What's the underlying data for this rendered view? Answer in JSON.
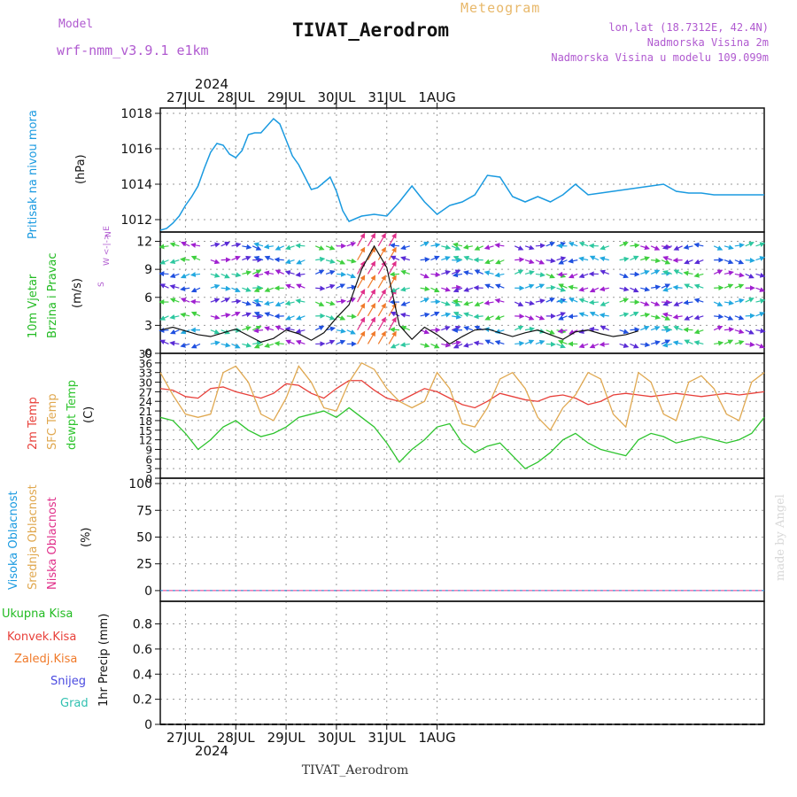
{
  "header": {
    "model_label": "Model",
    "model_name": "wrf-nmm_v3.9.1 e1km",
    "meteogram": "Meteogram",
    "station": "TIVAT_Aerodrom",
    "lonlat": "lon,lat (18.7312E, 42.4N)",
    "elev": "Nadmorska Visina 2m",
    "elev_model": "Nadmorska Visina u modelu 109.099m"
  },
  "time_axis": {
    "year": "2024",
    "days": [
      "27JUL",
      "28JUL",
      "29JUL",
      "30JUL",
      "31JUL",
      "1AUG"
    ],
    "bottom_station": "TIVAT_Aerodrom"
  },
  "panel_labels": {
    "pressure": [
      "Pritisak na nivou mora",
      "(hPa)"
    ],
    "wind": [
      "10m Vjetar",
      "Brzina i Pravac",
      "(m/s)"
    ],
    "wind_compass": [
      "N",
      "W <-|-> E",
      "S"
    ],
    "temp": [
      "2m Temp",
      "SFC Temp",
      "dewpt Temp",
      "(C)"
    ],
    "cloud": [
      "Visoka Oblacnost",
      "Srednja Oblacnost",
      "Niska Oblacnost",
      "(%)"
    ],
    "precip_axis": "1hr Precip (mm)",
    "precip_legend": [
      "Ukupna Kisa",
      "Konvek.Kisa",
      "Zaledj.Kisa",
      "Snijeg",
      "Grad"
    ],
    "credit": "made by Angel"
  },
  "colors": {
    "pressure": "#1a9ae0",
    "t2m": "#e8403a",
    "tsfc": "#e0a850",
    "dewpt": "#2ec42e",
    "magenta": "#e0308a",
    "purple": "#b05ad0",
    "green": "#22bb22",
    "orange": "#f07a2a",
    "blue": "#4a4ae0",
    "teal": "#30c0b0",
    "cyan": "#22a8e0"
  },
  "chart_data": [
    {
      "type": "line",
      "title": "",
      "ylabel": "Pritisak na nivou mora (hPa)",
      "ylim": [
        1011.3,
        1018.3
      ],
      "yticks": [
        1012,
        1014,
        1016,
        1018
      ],
      "x_hours": [
        0,
        3,
        6,
        9,
        12,
        15,
        18,
        21,
        24,
        27,
        30,
        33,
        36,
        39,
        42,
        45,
        48,
        51,
        54,
        57,
        60,
        63,
        66,
        69,
        72,
        75,
        78,
        81,
        84,
        87,
        90,
        96,
        102,
        108,
        114,
        120,
        126,
        132,
        138,
        144,
        150,
        156,
        162,
        168,
        174,
        180,
        186,
        192,
        198,
        204,
        210,
        216,
        222,
        228,
        234,
        240,
        246,
        252,
        258,
        264,
        270,
        276,
        282,
        288
      ],
      "series": [
        {
          "name": "Pritisak na nivou mora",
          "values": [
            1011.4,
            1011.5,
            1011.8,
            1012.2,
            1012.8,
            1013.3,
            1013.9,
            1014.9,
            1015.8,
            1016.3,
            1016.2,
            1015.7,
            1015.5,
            1015.9,
            1016.8,
            1016.9,
            1016.9,
            1017.3,
            1017.7,
            1017.4,
            1016.5,
            1015.6,
            1015.1,
            1014.4,
            1013.7,
            1013.8,
            1014.1,
            1014.4,
            1013.6,
            1012.5,
            1011.9,
            1012.2,
            1012.3,
            1012.2,
            1013.0,
            1013.9,
            1013.0,
            1012.3,
            1012.8,
            1013.0,
            1013.4,
            1014.5,
            1014.4,
            1013.3,
            1013.0,
            1013.3,
            1013.0,
            1013.4,
            1014.0,
            1013.4,
            1013.5,
            1013.6,
            1013.7,
            1013.8,
            1013.9,
            1014.0,
            1013.6,
            1013.5,
            1013.5,
            1013.4,
            1013.4,
            1013.4,
            1013.4,
            1013.4
          ]
        }
      ]
    },
    {
      "type": "line",
      "title": "",
      "ylabel": "10m Vjetar Brzina i Pravac (m/s)",
      "ylim": [
        0,
        13
      ],
      "yticks": [
        0,
        3,
        6,
        9,
        12
      ],
      "series": [
        {
          "name": "wind speed",
          "x_hours": [
            0,
            6,
            12,
            18,
            24,
            30,
            36,
            42,
            48,
            54,
            60,
            66,
            72,
            78,
            84,
            90,
            96,
            102,
            108,
            114,
            120,
            126,
            132,
            138,
            144,
            150,
            156,
            162,
            168,
            174,
            180,
            186,
            192,
            198,
            204,
            210,
            216,
            222,
            228
          ],
          "values": [
            2.5,
            2.8,
            2.4,
            2.0,
            1.8,
            2.2,
            2.6,
            1.9,
            1.2,
            1.6,
            2.5,
            2.1,
            1.4,
            2.2,
            3.8,
            5.2,
            9.0,
            11.5,
            9.2,
            3.0,
            1.5,
            2.8,
            2.0,
            1.0,
            1.8,
            2.5,
            2.6,
            2.2,
            1.8,
            2.2,
            2.5,
            2.0,
            1.5,
            2.3,
            2.5,
            2.1,
            1.8,
            2.0,
            2.4
          ]
        }
      ]
    },
    {
      "type": "line",
      "title": "",
      "ylabel": "(C)",
      "ylim": [
        0,
        39
      ],
      "yticks": [
        0,
        3,
        6,
        9,
        12,
        15,
        18,
        21,
        24,
        27,
        30,
        33,
        36,
        39
      ],
      "x_hours": [
        0,
        6,
        12,
        18,
        24,
        30,
        36,
        42,
        48,
        54,
        60,
        66,
        72,
        78,
        84,
        90,
        96,
        102,
        108,
        114,
        120,
        126,
        132,
        138,
        144,
        150,
        156,
        162,
        168,
        174,
        180,
        186,
        192,
        198,
        204,
        210,
        216,
        222,
        228,
        234,
        240,
        246,
        252,
        258,
        264,
        270,
        276,
        282,
        288
      ],
      "series": [
        {
          "name": "2m Temp",
          "values": [
            28,
            27.5,
            25.5,
            25,
            28,
            28.5,
            27,
            26,
            25,
            26.5,
            29.5,
            29,
            26.5,
            25,
            28,
            30.5,
            30.5,
            27.5,
            25,
            24,
            26,
            28,
            27,
            25,
            23,
            22,
            24,
            26.5,
            25.5,
            24.5,
            24,
            25.5,
            26,
            25,
            23,
            24,
            26,
            26.5,
            26,
            25.5,
            26,
            26.5,
            26,
            25.5,
            26,
            26.5,
            26,
            26.5,
            27
          ]
        },
        {
          "name": "SFC Temp",
          "values": [
            33,
            26,
            20,
            19,
            20,
            33,
            35,
            30,
            20,
            18,
            25,
            35,
            30,
            22,
            21,
            30,
            36,
            34,
            28,
            24,
            22,
            24,
            33,
            28,
            17,
            16,
            22,
            31,
            33,
            28,
            19,
            15,
            22,
            26,
            33,
            31,
            20,
            16,
            33,
            30,
            20,
            18,
            30,
            32,
            28,
            20,
            18,
            30,
            33
          ]
        },
        {
          "name": "dewpt Temp",
          "values": [
            19,
            18,
            14,
            9,
            12,
            16,
            18,
            15,
            13,
            14,
            16,
            19,
            20,
            21,
            19,
            22,
            19,
            16,
            11,
            5,
            9,
            12,
            16,
            17,
            11,
            8,
            10,
            11,
            7,
            3,
            5,
            8,
            12,
            14,
            11,
            9,
            8,
            7,
            12,
            14,
            13,
            11,
            12,
            13,
            12,
            11,
            12,
            14,
            19
          ]
        }
      ]
    },
    {
      "type": "line",
      "title": "",
      "ylabel": "Oblacnost (%)",
      "ylim": [
        -10,
        105
      ],
      "yticks": [
        0,
        25,
        50,
        75,
        100
      ],
      "series": [
        {
          "name": "Visoka Oblacnost",
          "values": [
            0,
            0
          ]
        },
        {
          "name": "Srednja Oblacnost",
          "values": [
            0,
            0
          ]
        },
        {
          "name": "Niska Oblacnost",
          "values": [
            0,
            0
          ]
        }
      ]
    },
    {
      "type": "line",
      "title": "",
      "ylabel": "1hr Precip (mm)",
      "ylim": [
        0,
        0.98
      ],
      "yticks": [
        0,
        0.2,
        0.4,
        0.6,
        0.8
      ],
      "series": [
        {
          "name": "Ukupna Kisa",
          "values": [
            0,
            0
          ]
        },
        {
          "name": "Konvek.Kisa",
          "values": [
            0,
            0
          ]
        },
        {
          "name": "Zaledj.Kisa",
          "values": [
            0,
            0
          ]
        },
        {
          "name": "Snijeg",
          "values": [
            0,
            0
          ]
        },
        {
          "name": "Grad",
          "values": [
            0,
            0
          ]
        }
      ]
    }
  ]
}
